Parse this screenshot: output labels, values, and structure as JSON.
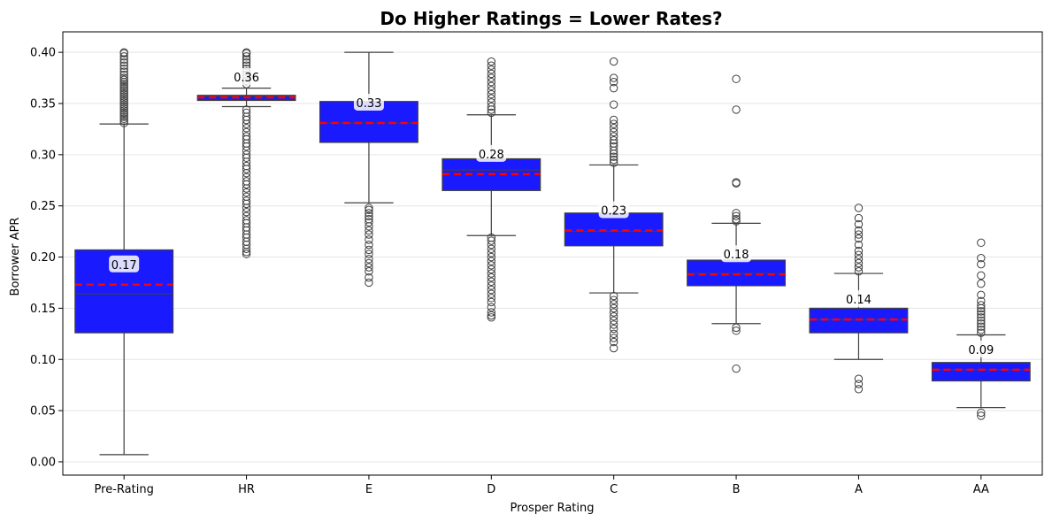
{
  "chart_data": {
    "type": "box",
    "title": "Do Higher Ratings = Lower Rates?",
    "xlabel": "Prosper Rating",
    "ylabel": "Borrower APR",
    "ylim": [
      -0.013,
      0.42
    ],
    "yticks": [
      0.0,
      0.05,
      0.1,
      0.15,
      0.2,
      0.25,
      0.3,
      0.35,
      0.4
    ],
    "ytick_labels": [
      "0.00",
      "0.05",
      "0.10",
      "0.15",
      "0.20",
      "0.25",
      "0.30",
      "0.35",
      "0.40"
    ],
    "grid": "y",
    "box_color": "#1a1aff",
    "mean_line_color": "#ff0000",
    "categories": [
      "Pre-Rating",
      "HR",
      "E",
      "D",
      "C",
      "B",
      "A",
      "AA"
    ],
    "boxes": [
      {
        "whislo": 0.007,
        "q1": 0.126,
        "med": 0.164,
        "q3": 0.207,
        "whishi": 0.33,
        "mean": 0.173,
        "mean_label": "0.17",
        "fliers": [
          0.331,
          0.333,
          0.335,
          0.337,
          0.339,
          0.341,
          0.343,
          0.345,
          0.347,
          0.349,
          0.351,
          0.353,
          0.355,
          0.357,
          0.359,
          0.361,
          0.363,
          0.365,
          0.367,
          0.369,
          0.371,
          0.373,
          0.375,
          0.378,
          0.381,
          0.384,
          0.387,
          0.39,
          0.393,
          0.396,
          0.399,
          0.4
        ]
      },
      {
        "whislo": 0.347,
        "q1": 0.353,
        "med": 0.357,
        "q3": 0.358,
        "whishi": 0.365,
        "mean": 0.356,
        "mean_label": "0.36",
        "fliers": [
          0.203,
          0.205,
          0.208,
          0.212,
          0.215,
          0.219,
          0.222,
          0.226,
          0.229,
          0.233,
          0.236,
          0.24,
          0.244,
          0.248,
          0.252,
          0.255,
          0.259,
          0.263,
          0.267,
          0.271,
          0.274,
          0.278,
          0.282,
          0.286,
          0.289,
          0.293,
          0.297,
          0.3,
          0.304,
          0.308,
          0.311,
          0.315,
          0.318,
          0.322,
          0.326,
          0.33,
          0.334,
          0.337,
          0.341,
          0.344,
          0.369,
          0.372,
          0.375,
          0.378,
          0.381,
          0.384,
          0.387,
          0.39,
          0.393,
          0.396,
          0.399,
          0.4
        ]
      },
      {
        "whislo": 0.253,
        "q1": 0.312,
        "med": 0.331,
        "q3": 0.352,
        "whishi": 0.4,
        "mean": 0.331,
        "mean_label": "0.33",
        "fliers": [
          0.175,
          0.18,
          0.186,
          0.19,
          0.194,
          0.198,
          0.203,
          0.207,
          0.212,
          0.217,
          0.222,
          0.226,
          0.23,
          0.234,
          0.237,
          0.24,
          0.243,
          0.246,
          0.248
        ]
      },
      {
        "whislo": 0.221,
        "q1": 0.265,
        "med": 0.285,
        "q3": 0.296,
        "whishi": 0.339,
        "mean": 0.281,
        "mean_label": "0.28",
        "fliers": [
          0.141,
          0.143,
          0.146,
          0.151,
          0.156,
          0.16,
          0.164,
          0.168,
          0.172,
          0.176,
          0.18,
          0.184,
          0.188,
          0.192,
          0.196,
          0.2,
          0.204,
          0.208,
          0.212,
          0.216,
          0.219,
          0.341,
          0.344,
          0.347,
          0.351,
          0.355,
          0.359,
          0.363,
          0.367,
          0.371,
          0.375,
          0.379,
          0.383,
          0.387,
          0.391
        ]
      },
      {
        "whislo": 0.165,
        "q1": 0.211,
        "med": 0.225,
        "q3": 0.243,
        "whishi": 0.29,
        "mean": 0.226,
        "mean_label": "0.23",
        "fliers": [
          0.111,
          0.117,
          0.121,
          0.125,
          0.13,
          0.134,
          0.138,
          0.142,
          0.146,
          0.15,
          0.154,
          0.158,
          0.162,
          0.292,
          0.295,
          0.298,
          0.301,
          0.304,
          0.308,
          0.311,
          0.314,
          0.318,
          0.322,
          0.326,
          0.33,
          0.334,
          0.349,
          0.365,
          0.371,
          0.375,
          0.391
        ]
      },
      {
        "whislo": 0.135,
        "q1": 0.172,
        "med": 0.184,
        "q3": 0.197,
        "whishi": 0.233,
        "mean": 0.183,
        "mean_label": "0.18",
        "fliers": [
          0.091,
          0.128,
          0.131,
          0.235,
          0.237,
          0.24,
          0.243,
          0.272,
          0.273,
          0.344,
          0.374
        ]
      },
      {
        "whislo": 0.1,
        "q1": 0.126,
        "med": 0.139,
        "q3": 0.15,
        "whishi": 0.184,
        "mean": 0.139,
        "mean_label": "0.14",
        "fliers": [
          0.071,
          0.076,
          0.081,
          0.186,
          0.19,
          0.194,
          0.198,
          0.202,
          0.206,
          0.212,
          0.218,
          0.222,
          0.226,
          0.232,
          0.238,
          0.248
        ]
      },
      {
        "whislo": 0.053,
        "q1": 0.079,
        "med": 0.09,
        "q3": 0.097,
        "whishi": 0.124,
        "mean": 0.09,
        "mean_label": "0.09",
        "fliers": [
          0.045,
          0.048,
          0.126,
          0.129,
          0.132,
          0.135,
          0.138,
          0.141,
          0.144,
          0.147,
          0.15,
          0.153,
          0.157,
          0.163,
          0.174,
          0.182,
          0.193,
          0.199,
          0.214
        ]
      }
    ]
  }
}
